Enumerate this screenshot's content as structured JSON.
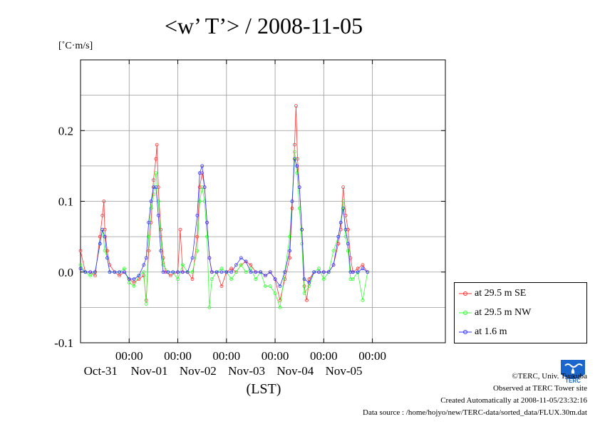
{
  "chart_data": {
    "type": "line",
    "title": "<w’ T’> / 2008-11-05",
    "ylabel": "[˚C·m/s]",
    "xlabel": "(LST)",
    "ylim": [
      -0.1,
      0.3
    ],
    "xlim": [
      0,
      7.5
    ],
    "yticks": [
      {
        "value": -0.1,
        "label": "-0.1"
      },
      {
        "value": 0.0,
        "label": "0.0"
      },
      {
        "value": 0.1,
        "label": "0.1"
      },
      {
        "value": 0.2,
        "label": "0.2"
      }
    ],
    "xticks": [
      {
        "value": 1,
        "time": "00:00",
        "date": "Oct-31"
      },
      {
        "value": 2,
        "time": "00:00",
        "date": "Nov-01"
      },
      {
        "value": 3,
        "time": "00:00",
        "date": "Nov-02"
      },
      {
        "value": 4,
        "time": "00:00",
        "date": "Nov-03"
      },
      {
        "value": 5,
        "time": "00:00",
        "date": "Nov-04"
      },
      {
        "value": 6,
        "time": "00:00",
        "date": "Nov-05"
      }
    ],
    "grid": true,
    "legend_position": "bottom-right-outside",
    "series": [
      {
        "name": "at 29.5 m SE",
        "color": "#ff3333",
        "points": [
          [
            0.0,
            0.03
          ],
          [
            0.1,
            0.0
          ],
          [
            0.2,
            0.0
          ],
          [
            0.3,
            -0.005
          ],
          [
            0.4,
            0.05
          ],
          [
            0.45,
            0.08
          ],
          [
            0.48,
            0.1
          ],
          [
            0.5,
            0.06
          ],
          [
            0.55,
            0.03
          ],
          [
            0.6,
            0.01
          ],
          [
            0.7,
            0.0
          ],
          [
            0.8,
            -0.005
          ],
          [
            0.9,
            0.0
          ],
          [
            1.0,
            -0.01
          ],
          [
            1.1,
            -0.015
          ],
          [
            1.2,
            -0.01
          ],
          [
            1.3,
            -0.005
          ],
          [
            1.35,
            -0.04
          ],
          [
            1.4,
            0.03
          ],
          [
            1.45,
            0.07
          ],
          [
            1.5,
            0.13
          ],
          [
            1.55,
            0.16
          ],
          [
            1.57,
            0.18
          ],
          [
            1.6,
            0.12
          ],
          [
            1.65,
            0.06
          ],
          [
            1.7,
            0.02
          ],
          [
            1.75,
            0.0
          ],
          [
            1.85,
            -0.005
          ],
          [
            2.0,
            0.0
          ],
          [
            2.05,
            0.06
          ],
          [
            2.1,
            0.0
          ],
          [
            2.2,
            0.0
          ],
          [
            2.3,
            -0.01
          ],
          [
            2.4,
            0.05
          ],
          [
            2.45,
            0.12
          ],
          [
            2.5,
            0.14
          ],
          [
            2.55,
            0.12
          ],
          [
            2.6,
            0.07
          ],
          [
            2.65,
            0.02
          ],
          [
            2.7,
            0.0
          ],
          [
            2.8,
            0.0
          ],
          [
            2.9,
            -0.02
          ],
          [
            3.0,
            0.0
          ],
          [
            3.1,
            0.005
          ],
          [
            3.2,
            0.0
          ],
          [
            3.3,
            0.01
          ],
          [
            3.4,
            0.015
          ],
          [
            3.5,
            0.01
          ],
          [
            3.6,
            0.0
          ],
          [
            3.7,
            0.0
          ],
          [
            3.8,
            -0.005
          ],
          [
            3.9,
            0.0
          ],
          [
            4.0,
            -0.01
          ],
          [
            4.1,
            -0.04
          ],
          [
            4.2,
            -0.01
          ],
          [
            4.3,
            0.02
          ],
          [
            4.35,
            0.09
          ],
          [
            4.4,
            0.18
          ],
          [
            4.43,
            0.235
          ],
          [
            4.46,
            0.16
          ],
          [
            4.5,
            0.12
          ],
          [
            4.55,
            0.06
          ],
          [
            4.6,
            -0.02
          ],
          [
            4.65,
            -0.04
          ],
          [
            4.7,
            -0.01
          ],
          [
            4.8,
            0.0
          ],
          [
            4.9,
            0.0
          ],
          [
            5.0,
            0.0
          ],
          [
            5.1,
            0.0
          ],
          [
            5.2,
            0.01
          ],
          [
            5.3,
            0.04
          ],
          [
            5.35,
            0.06
          ],
          [
            5.4,
            0.12
          ],
          [
            5.45,
            0.08
          ],
          [
            5.5,
            0.06
          ],
          [
            5.55,
            0.02
          ],
          [
            5.6,
            0.0
          ],
          [
            5.7,
            0.005
          ],
          [
            5.8,
            0.01
          ],
          [
            5.9,
            0.0
          ]
        ]
      },
      {
        "name": "at 29.5 m NW",
        "color": "#33ff33",
        "points": [
          [
            0.0,
            0.01
          ],
          [
            0.1,
            0.0
          ],
          [
            0.2,
            -0.005
          ],
          [
            0.3,
            0.0
          ],
          [
            0.4,
            0.04
          ],
          [
            0.45,
            0.06
          ],
          [
            0.5,
            0.03
          ],
          [
            0.55,
            0.02
          ],
          [
            0.6,
            0.0
          ],
          [
            0.7,
            0.0
          ],
          [
            0.8,
            0.0
          ],
          [
            0.9,
            0.005
          ],
          [
            1.0,
            -0.015
          ],
          [
            1.1,
            -0.02
          ],
          [
            1.2,
            -0.005
          ],
          [
            1.3,
            0.0
          ],
          [
            1.35,
            -0.045
          ],
          [
            1.4,
            0.05
          ],
          [
            1.45,
            0.09
          ],
          [
            1.5,
            0.11
          ],
          [
            1.55,
            0.14
          ],
          [
            1.6,
            0.1
          ],
          [
            1.65,
            0.05
          ],
          [
            1.7,
            0.01
          ],
          [
            1.8,
            0.0
          ],
          [
            1.9,
            0.0
          ],
          [
            2.0,
            -0.01
          ],
          [
            2.1,
            0.01
          ],
          [
            2.2,
            0.0
          ],
          [
            2.3,
            0.0
          ],
          [
            2.4,
            0.03
          ],
          [
            2.45,
            0.1
          ],
          [
            2.5,
            0.12
          ],
          [
            2.55,
            0.1
          ],
          [
            2.6,
            0.05
          ],
          [
            2.65,
            -0.05
          ],
          [
            2.7,
            -0.01
          ],
          [
            2.8,
            0.0
          ],
          [
            2.9,
            0.005
          ],
          [
            3.0,
            0.0
          ],
          [
            3.1,
            -0.01
          ],
          [
            3.2,
            0.0
          ],
          [
            3.3,
            0.01
          ],
          [
            3.4,
            0.0
          ],
          [
            3.5,
            0.005
          ],
          [
            3.6,
            -0.01
          ],
          [
            3.7,
            0.0
          ],
          [
            3.8,
            -0.02
          ],
          [
            3.9,
            -0.02
          ],
          [
            4.0,
            -0.03
          ],
          [
            4.1,
            -0.05
          ],
          [
            4.2,
            0.0
          ],
          [
            4.3,
            0.05
          ],
          [
            4.35,
            0.1
          ],
          [
            4.4,
            0.17
          ],
          [
            4.45,
            0.14
          ],
          [
            4.5,
            0.09
          ],
          [
            4.55,
            0.04
          ],
          [
            4.6,
            -0.03
          ],
          [
            4.7,
            -0.02
          ],
          [
            4.8,
            0.0
          ],
          [
            4.9,
            0.005
          ],
          [
            5.0,
            -0.01
          ],
          [
            5.1,
            0.0
          ],
          [
            5.2,
            0.03
          ],
          [
            5.3,
            0.05
          ],
          [
            5.35,
            0.07
          ],
          [
            5.4,
            0.1
          ],
          [
            5.45,
            0.05
          ],
          [
            5.5,
            0.03
          ],
          [
            5.55,
            -0.01
          ],
          [
            5.6,
            -0.01
          ],
          [
            5.7,
            0.0
          ],
          [
            5.8,
            -0.04
          ],
          [
            5.9,
            0.0
          ]
        ]
      },
      {
        "name": "at 1.6 m",
        "color": "#3333ff",
        "points": [
          [
            0.0,
            0.005
          ],
          [
            0.1,
            0.0
          ],
          [
            0.2,
            0.0
          ],
          [
            0.3,
            0.0
          ],
          [
            0.4,
            0.04
          ],
          [
            0.45,
            0.06
          ],
          [
            0.5,
            0.05
          ],
          [
            0.55,
            0.02
          ],
          [
            0.6,
            0.0
          ],
          [
            0.7,
            0.0
          ],
          [
            0.8,
            0.0
          ],
          [
            0.9,
            0.0
          ],
          [
            1.0,
            -0.01
          ],
          [
            1.1,
            -0.01
          ],
          [
            1.2,
            -0.005
          ],
          [
            1.3,
            0.01
          ],
          [
            1.35,
            0.02
          ],
          [
            1.4,
            0.07
          ],
          [
            1.45,
            0.1
          ],
          [
            1.5,
            0.12
          ],
          [
            1.55,
            0.12
          ],
          [
            1.6,
            0.08
          ],
          [
            1.65,
            0.03
          ],
          [
            1.7,
            0.0
          ],
          [
            1.8,
            0.0
          ],
          [
            1.9,
            0.0
          ],
          [
            2.0,
            0.0
          ],
          [
            2.1,
            0.0
          ],
          [
            2.2,
            0.0
          ],
          [
            2.3,
            0.02
          ],
          [
            2.4,
            0.08
          ],
          [
            2.45,
            0.14
          ],
          [
            2.5,
            0.15
          ],
          [
            2.55,
            0.12
          ],
          [
            2.6,
            0.07
          ],
          [
            2.65,
            0.02
          ],
          [
            2.7,
            0.0
          ],
          [
            2.8,
            0.0
          ],
          [
            2.9,
            0.0
          ],
          [
            3.0,
            0.0
          ],
          [
            3.1,
            0.0
          ],
          [
            3.2,
            0.01
          ],
          [
            3.3,
            0.02
          ],
          [
            3.4,
            0.015
          ],
          [
            3.5,
            0.0
          ],
          [
            3.6,
            0.0
          ],
          [
            3.7,
            0.0
          ],
          [
            3.8,
            -0.005
          ],
          [
            3.9,
            0.0
          ],
          [
            4.0,
            -0.01
          ],
          [
            4.1,
            -0.02
          ],
          [
            4.2,
            0.0
          ],
          [
            4.3,
            0.03
          ],
          [
            4.35,
            0.1
          ],
          [
            4.4,
            0.16
          ],
          [
            4.45,
            0.15
          ],
          [
            4.5,
            0.12
          ],
          [
            4.55,
            0.06
          ],
          [
            4.6,
            -0.01
          ],
          [
            4.7,
            -0.015
          ],
          [
            4.8,
            0.0
          ],
          [
            4.9,
            0.0
          ],
          [
            5.0,
            0.0
          ],
          [
            5.1,
            0.0
          ],
          [
            5.2,
            0.01
          ],
          [
            5.3,
            0.05
          ],
          [
            5.35,
            0.07
          ],
          [
            5.4,
            0.09
          ],
          [
            5.45,
            0.06
          ],
          [
            5.5,
            0.04
          ],
          [
            5.55,
            0.0
          ],
          [
            5.6,
            0.0
          ],
          [
            5.7,
            0.0
          ],
          [
            5.8,
            0.005
          ],
          [
            5.9,
            0.0
          ]
        ]
      }
    ]
  },
  "credits": {
    "copyright": "©TERC, Univ. Tsukuba",
    "observed": "Observed at TERC Tower site",
    "created": "Created Automatically at 2008-11-05/23:32:16",
    "source": "Data source : /home/hojyo/new/TERC-data/sorted_data/FLUX.30m.dat"
  },
  "logo": {
    "text": "TERC",
    "color": "#1a66cc"
  }
}
